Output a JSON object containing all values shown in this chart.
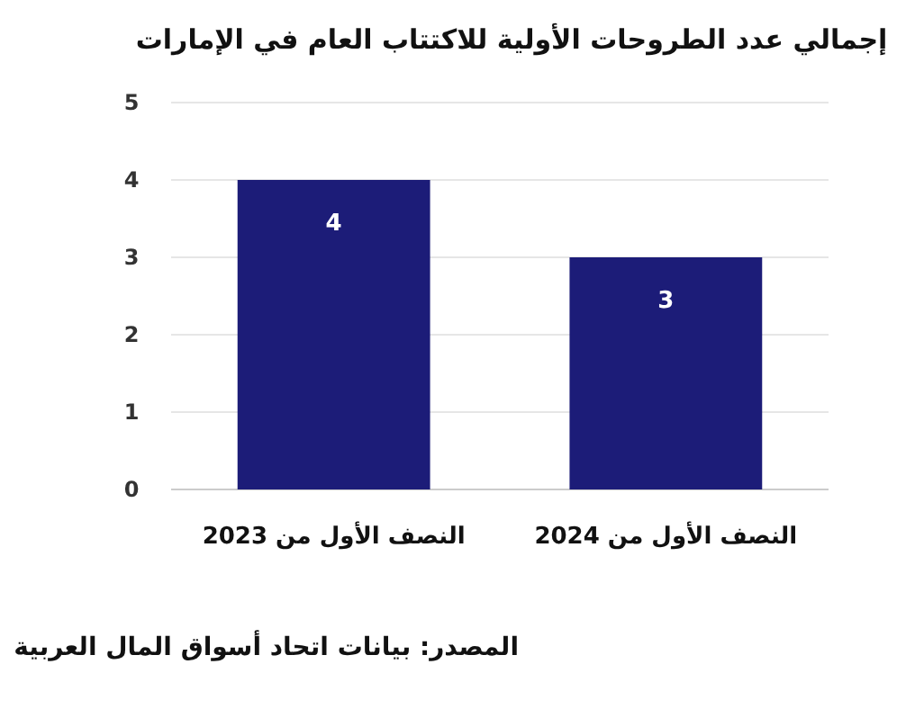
{
  "chart_data": {
    "type": "bar",
    "title": "إجمالي عدد الطروحات الأولية للاكتتاب العام في الإمارات",
    "categories": [
      "النصف الأول من 2023",
      "النصف الأول من 2024"
    ],
    "values": [
      4,
      3
    ],
    "color": "#1c1c78",
    "ylim": [
      0,
      5
    ],
    "yticks": [
      0,
      1,
      2,
      3,
      4,
      5
    ],
    "grid": "y",
    "data_labels": true,
    "annotations": [
      "المصدر: بيانات اتحاد أسواق المال العربية"
    ]
  }
}
